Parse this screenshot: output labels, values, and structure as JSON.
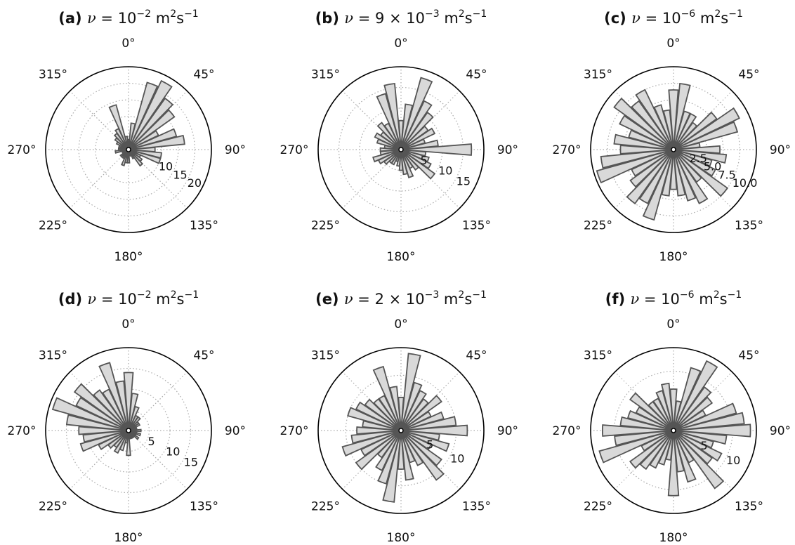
{
  "figure": {
    "angle_labels": [
      "0°",
      "45°",
      "90°",
      "135°",
      "180°",
      "225°",
      "270°",
      "315°"
    ],
    "colors": {
      "bar_fill": "#d9d9d9",
      "bar_edge": "#555555",
      "grid": "#aaaaaa",
      "outline": "#000000"
    }
  },
  "chart_data": [
    {
      "type": "bar",
      "projection": "polar",
      "panel": "(a)",
      "title_parts": {
        "letter": "(a)",
        "nu": "ν",
        "value": "= 10",
        "exp": "−2",
        "units": "m",
        "units_exp1": "2",
        "units_mid": "s",
        "units_exp2": "−1"
      },
      "direction": "clockwise",
      "zero_location": "N",
      "grid": true,
      "r_ticks": [
        "10",
        "15",
        "20"
      ],
      "r_tick_values": [
        10,
        15,
        20
      ],
      "r_max": 25,
      "theta": [
        0,
        10,
        20,
        30,
        40,
        50,
        60,
        70,
        80,
        90,
        100,
        110,
        120,
        130,
        140,
        150,
        160,
        170,
        180,
        190,
        200,
        210,
        220,
        230,
        240,
        250,
        260,
        270,
        280,
        290,
        300,
        310,
        320,
        330,
        340,
        350
      ],
      "values": [
        3,
        8,
        21,
        23,
        19,
        17,
        10,
        15,
        17,
        8,
        10,
        10,
        4,
        5,
        6,
        3,
        2,
        1,
        4,
        4,
        5,
        3,
        3,
        3,
        2,
        2,
        4,
        3,
        3,
        3,
        4,
        5,
        6,
        7,
        14,
        4
      ]
    },
    {
      "type": "bar",
      "projection": "polar",
      "panel": "(b)",
      "title_parts": {
        "letter": "(b)",
        "nu": "ν",
        "value": "= 9 × 10",
        "exp": "−3",
        "units": "m",
        "units_exp1": "2",
        "units_mid": "s",
        "units_exp2": "−1"
      },
      "direction": "clockwise",
      "zero_location": "N",
      "grid": true,
      "r_ticks": [
        "5",
        "10",
        "15"
      ],
      "r_tick_values": [
        5,
        10,
        15
      ],
      "r_max": 20,
      "theta": [
        0,
        10,
        20,
        30,
        40,
        50,
        60,
        70,
        80,
        90,
        100,
        110,
        120,
        130,
        140,
        150,
        160,
        170,
        180,
        190,
        200,
        210,
        220,
        230,
        240,
        250,
        260,
        270,
        280,
        290,
        300,
        310,
        320,
        330,
        340,
        350
      ],
      "values": [
        7,
        11,
        18,
        13,
        11,
        8,
        9,
        6,
        9,
        17,
        6,
        7,
        8,
        10,
        6,
        5,
        7,
        6,
        5,
        4,
        3,
        4,
        4,
        5,
        6,
        7,
        5,
        5,
        4,
        6,
        7,
        6,
        8,
        7,
        14,
        16
      ]
    },
    {
      "type": "bar",
      "projection": "polar",
      "panel": "(c)",
      "title_parts": {
        "letter": "(c)",
        "nu": "ν",
        "value": "= 10",
        "exp": "−6",
        "units": "m",
        "units_exp1": "2",
        "units_mid": "s",
        "units_exp2": "−1"
      },
      "direction": "clockwise",
      "zero_location": "N",
      "grid": true,
      "r_ticks": [
        "2.5",
        "5.0",
        "7.5",
        "10.0"
      ],
      "r_tick_values": [
        2.5,
        5.0,
        7.5,
        10.0
      ],
      "r_max": 12.5,
      "theta": [
        0,
        10,
        20,
        30,
        40,
        50,
        60,
        70,
        80,
        90,
        100,
        110,
        120,
        130,
        140,
        150,
        160,
        170,
        180,
        190,
        200,
        210,
        220,
        230,
        240,
        250,
        260,
        270,
        280,
        290,
        300,
        310,
        320,
        330,
        340,
        350
      ],
      "values": [
        9,
        10,
        6,
        6,
        5,
        8,
        11,
        10,
        4,
        7,
        8,
        6,
        7,
        10,
        6,
        9,
        8,
        7,
        6,
        7,
        11,
        9,
        10,
        8,
        7,
        12,
        11,
        8,
        9,
        7,
        9,
        11,
        9,
        10,
        7,
        6
      ]
    },
    {
      "type": "bar",
      "projection": "polar",
      "panel": "(d)",
      "title_parts": {
        "letter": "(d)",
        "nu": "ν",
        "value": "= 10",
        "exp": "−2",
        "units": "m",
        "units_exp1": "2",
        "units_mid": "s",
        "units_exp2": "−1"
      },
      "direction": "clockwise",
      "zero_location": "N",
      "grid": true,
      "r_ticks": [
        "5",
        "10",
        "15"
      ],
      "r_tick_values": [
        5,
        10,
        15
      ],
      "r_max": 20,
      "theta": [
        0,
        10,
        20,
        30,
        40,
        50,
        60,
        70,
        80,
        90,
        100,
        110,
        120,
        130,
        140,
        150,
        160,
        170,
        180,
        190,
        200,
        210,
        220,
        230,
        240,
        250,
        260,
        270,
        280,
        290,
        300,
        310,
        320,
        330,
        340,
        350
      ],
      "values": [
        14,
        9,
        6,
        4,
        4,
        3,
        3,
        2,
        2,
        3,
        2,
        3,
        2,
        3,
        2,
        2,
        2,
        2,
        6,
        3,
        5,
        6,
        5,
        6,
        8,
        12,
        11,
        12,
        15,
        19,
        14,
        16,
        12,
        11,
        17,
        12
      ]
    },
    {
      "type": "bar",
      "projection": "polar",
      "panel": "(e)",
      "title_parts": {
        "letter": "(e)",
        "nu": "ν",
        "value": "= 2 × 10",
        "exp": "−3",
        "units": "m",
        "units_exp1": "2",
        "units_mid": "s",
        "units_exp2": "−1"
      },
      "direction": "clockwise",
      "zero_location": "N",
      "grid": true,
      "r_ticks": [
        "5",
        "10"
      ],
      "r_tick_values": [
        5,
        10
      ],
      "r_max": 15,
      "theta": [
        0,
        10,
        20,
        30,
        40,
        50,
        60,
        70,
        80,
        90,
        100,
        110,
        120,
        130,
        140,
        150,
        160,
        170,
        180,
        190,
        200,
        210,
        220,
        230,
        240,
        250,
        260,
        270,
        280,
        290,
        300,
        310,
        320,
        330,
        340,
        350
      ],
      "values": [
        6,
        14,
        9,
        8,
        7,
        9,
        6,
        8,
        10,
        12,
        7,
        9,
        6,
        9,
        11,
        7,
        6,
        9,
        7,
        13,
        10,
        8,
        6,
        10,
        8,
        11,
        9,
        8,
        7,
        10,
        9,
        8,
        7,
        7,
        12,
        8
      ]
    },
    {
      "type": "bar",
      "projection": "polar",
      "panel": "(f)",
      "title_parts": {
        "letter": "(f)",
        "nu": "ν",
        "value": "= 10",
        "exp": "−6",
        "units": "m",
        "units_exp1": "2",
        "units_mid": "s",
        "units_exp2": "−1"
      },
      "direction": "clockwise",
      "zero_location": "N",
      "grid": true,
      "r_ticks": [
        "5",
        "10"
      ],
      "r_tick_values": [
        5,
        10
      ],
      "r_max": 14,
      "theta": [
        0,
        10,
        20,
        30,
        40,
        50,
        60,
        70,
        80,
        90,
        100,
        110,
        120,
        130,
        140,
        150,
        160,
        170,
        180,
        190,
        200,
        210,
        220,
        230,
        240,
        250,
        260,
        270,
        280,
        290,
        300,
        310,
        320,
        330,
        340,
        350
      ],
      "values": [
        7,
        5,
        11,
        13,
        9,
        8,
        6,
        11,
        12,
        13,
        9,
        7,
        9,
        8,
        12,
        6,
        9,
        7,
        11,
        5,
        6,
        7,
        8,
        9,
        6,
        13,
        10,
        12,
        9,
        8,
        7,
        9,
        6,
        6,
        7,
        8
      ]
    }
  ]
}
